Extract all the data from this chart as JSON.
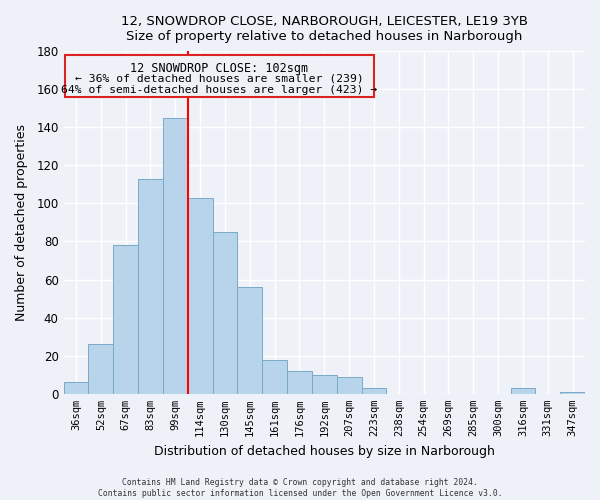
{
  "title": "12, SNOWDROP CLOSE, NARBOROUGH, LEICESTER, LE19 3YB",
  "subtitle": "Size of property relative to detached houses in Narborough",
  "xlabel": "Distribution of detached houses by size in Narborough",
  "ylabel": "Number of detached properties",
  "footer_line1": "Contains HM Land Registry data © Crown copyright and database right 2024.",
  "footer_line2": "Contains public sector information licensed under the Open Government Licence v3.0.",
  "categories": [
    "36sqm",
    "52sqm",
    "67sqm",
    "83sqm",
    "99sqm",
    "114sqm",
    "130sqm",
    "145sqm",
    "161sqm",
    "176sqm",
    "192sqm",
    "207sqm",
    "223sqm",
    "238sqm",
    "254sqm",
    "269sqm",
    "285sqm",
    "300sqm",
    "316sqm",
    "331sqm",
    "347sqm"
  ],
  "values": [
    6,
    26,
    78,
    113,
    145,
    103,
    85,
    56,
    18,
    12,
    10,
    9,
    3,
    0,
    0,
    0,
    0,
    0,
    3,
    0,
    1
  ],
  "bar_color": "#b8d4ea",
  "bar_edge_color": "#7aaac8",
  "reference_line_x": 4.5,
  "reference_line_color": "red",
  "annotation_title": "12 SNOWDROP CLOSE: 102sqm",
  "annotation_line1": "← 36% of detached houses are smaller (239)",
  "annotation_line2": "64% of semi-detached houses are larger (423) →",
  "ylim": [
    0,
    180
  ],
  "yticks": [
    0,
    20,
    40,
    60,
    80,
    100,
    120,
    140,
    160,
    180
  ],
  "background_color": "#eef2f8",
  "grid_color": "white",
  "annotation_box_color": "#dd2222"
}
